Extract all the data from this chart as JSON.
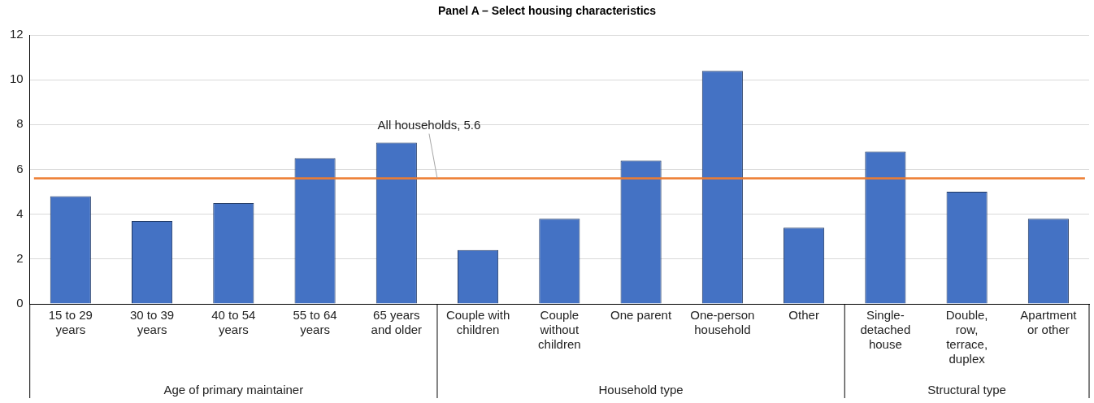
{
  "chart_data": {
    "type": "bar",
    "title": "Panel A – Select housing characteristics",
    "categories": [
      "15 to 29 years",
      "30 to 39 years",
      "40 to 54 years",
      "55 to 64 years",
      "65 years and older",
      "Couple with children",
      "Couple without children",
      "One parent",
      "One-person household",
      "Other",
      "Single-detached house",
      "Double, row, terrace, duplex",
      "Apartment or other"
    ],
    "values": [
      4.8,
      3.7,
      4.5,
      6.5,
      7.2,
      2.4,
      3.8,
      6.4,
      10.4,
      3.4,
      6.8,
      5.0,
      3.8
    ],
    "color": "#4472c4",
    "ylim": [
      0,
      12
    ],
    "yticks": [
      0,
      2,
      4,
      6,
      8,
      10,
      12
    ],
    "grid": "y",
    "legend": false,
    "ref_lines": [
      {
        "axis": "y",
        "value": 5.6,
        "label": "All households, 5.6",
        "color": "#ed7d31"
      }
    ],
    "annotations": [
      "Age of primary maintainer",
      "Household type",
      "Structural type"
    ]
  }
}
